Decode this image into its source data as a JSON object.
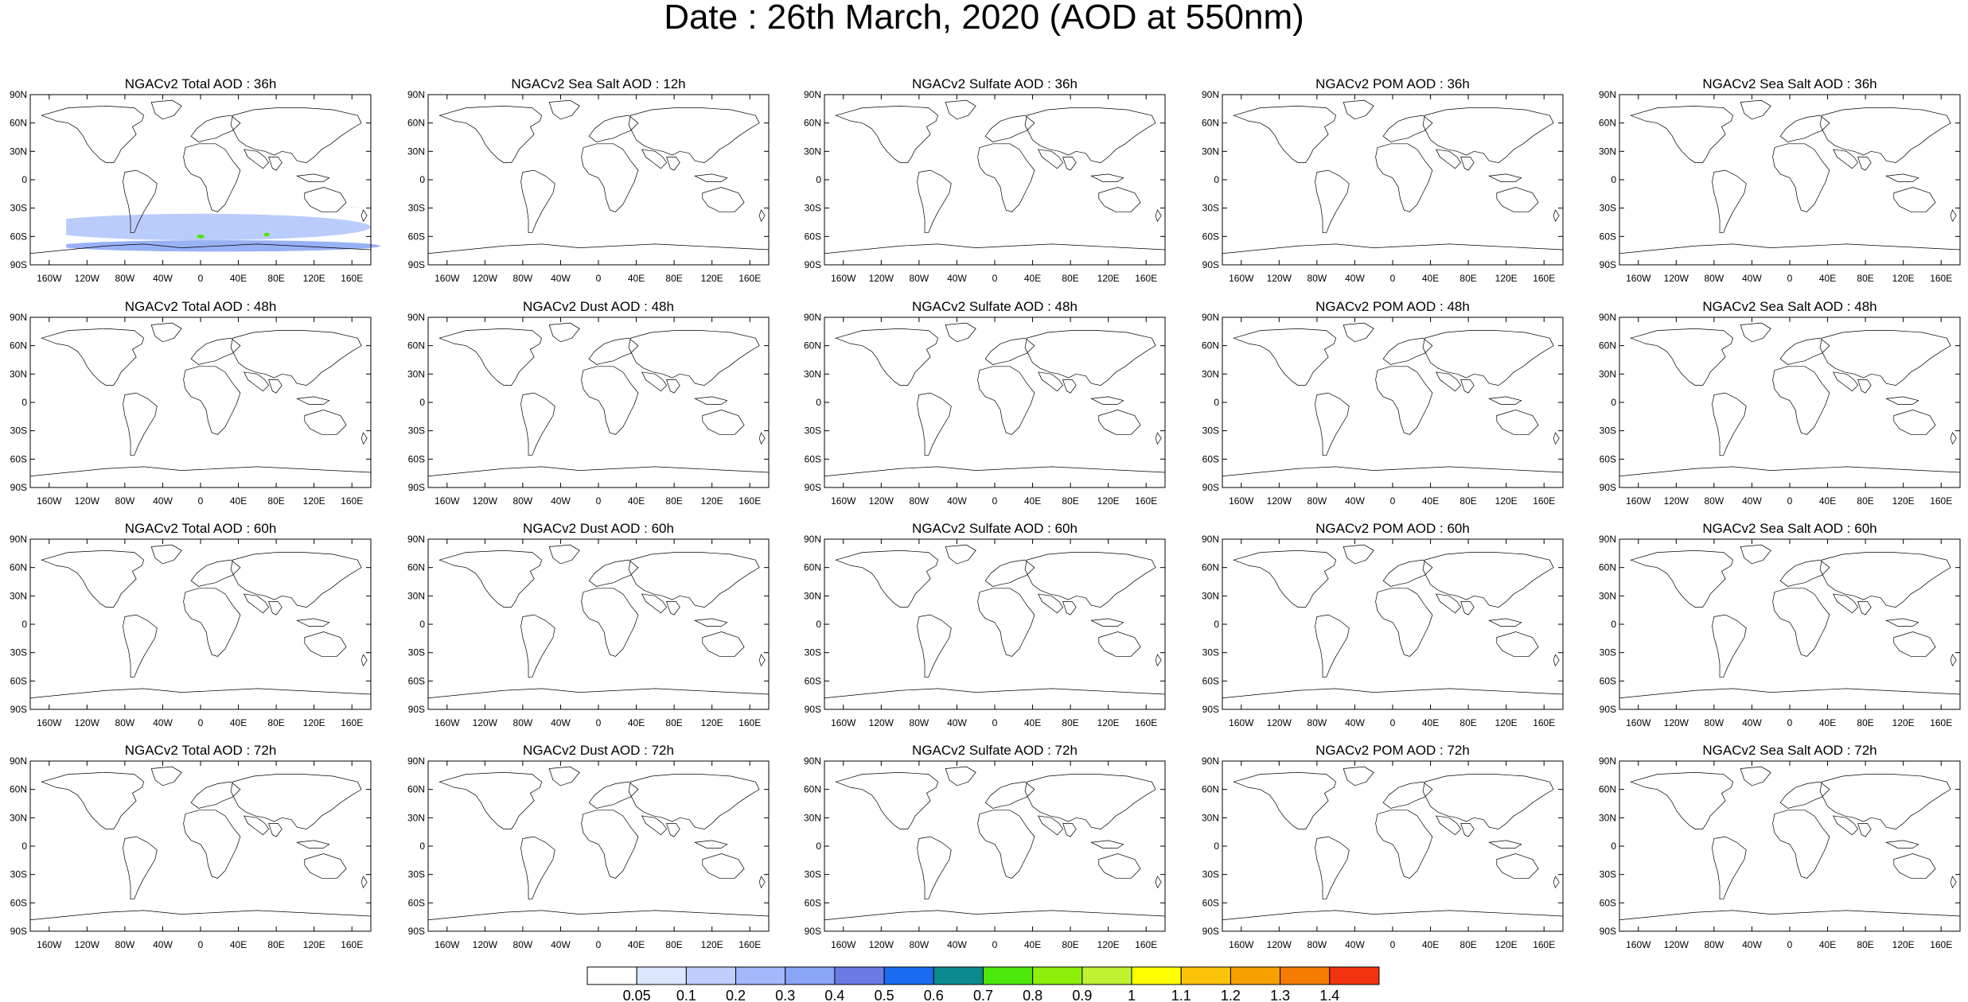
{
  "page": {
    "title": "Date : 26th March, 2020 (AOD at 550nm)"
  },
  "panels": [
    [
      "NGACv2 Total AOD : 36h",
      "NGACv2 Sea Salt  AOD : 12h",
      "NGACv2 Sulfate AOD : 36h",
      "NGACv2 POM AOD : 36h",
      "NGACv2 Sea Salt AOD : 36h"
    ],
    [
      "NGACv2 Total AOD : 48h",
      "NGACv2 Dust AOD : 48h",
      "NGACv2 Sulfate AOD : 48h",
      "NGACv2 POM AOD : 48h",
      "NGACv2 Sea Salt AOD : 48h"
    ],
    [
      "NGACv2 Total AOD : 60h",
      "NGACv2 Dust AOD : 60h",
      "NGACv2 Sulfate AOD : 60h",
      "NGACv2 POM AOD : 60h",
      "NGACv2 Sea Salt AOD : 60h"
    ],
    [
      "NGACv2 Total AOD : 72h",
      "NGACv2 Dust AOD : 72h",
      "NGACv2 Sulfate AOD : 72h",
      "NGACv2 POM AOD : 72h",
      "NGACv2 Sea Salt  AOD : 72h"
    ]
  ],
  "axis": {
    "lat_labels": [
      "90N",
      "60N",
      "30N",
      "0",
      "30S",
      "60S",
      "90S"
    ],
    "lon_labels": [
      "160W",
      "120W",
      "80W",
      "40W",
      "0",
      "40E",
      "80E",
      "120E",
      "160E"
    ]
  },
  "colorbar": {
    "labels": [
      "0.05",
      "0.1",
      "0.2",
      "0.3",
      "0.4",
      "0.5",
      "0.6",
      "0.7",
      "0.8",
      "0.9",
      "1",
      "1.1",
      "1.2",
      "1.3",
      "1.4"
    ],
    "colors": [
      "#ffffff",
      "#dbe6ff",
      "#bfcffd",
      "#a3b9fb",
      "#8aa4f6",
      "#6a7be6",
      "#1a6cf0",
      "#0a8a8e",
      "#4de80b",
      "#8ef00a",
      "#bff230",
      "#ffff00",
      "#fbc40a",
      "#f7a000",
      "#f57c00",
      "#f2320f"
    ]
  },
  "field_colors": {
    "low": "#d6e2ff",
    "mid": "#b3c6fb",
    "high": "#8ea8f4",
    "peak": "#6a7be6",
    "hot": "#4de80b",
    "hot2": "#bff230"
  }
}
